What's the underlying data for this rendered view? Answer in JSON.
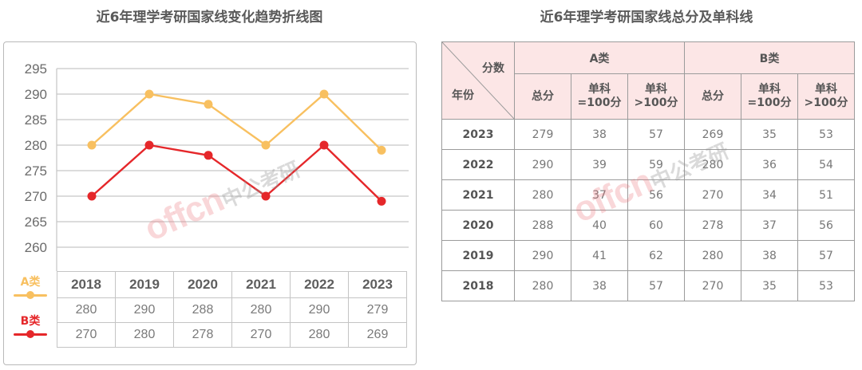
{
  "left": {
    "title": "近6年理学考研国家线变化趋势折线图",
    "y_ticks": [
      "295",
      "290",
      "285",
      "280",
      "275",
      "270",
      "265",
      "260"
    ],
    "legend": [
      {
        "label": "A类",
        "color": "#f8c060"
      },
      {
        "label": "B类",
        "color": "#e5272a"
      }
    ],
    "table": {
      "years": [
        "2018",
        "2019",
        "2020",
        "2021",
        "2022",
        "2023"
      ],
      "a_values": [
        "280",
        "290",
        "288",
        "280",
        "290",
        "279"
      ],
      "b_values": [
        "270",
        "280",
        "278",
        "270",
        "280",
        "269"
      ]
    },
    "watermark": {
      "en": "offcn",
      "cn": "中公考研"
    }
  },
  "right": {
    "title": "近6年理学考研国家线总分及单科线",
    "corner_top": "分数",
    "corner_bottom": "年份",
    "group_a": "A类",
    "group_b": "B类",
    "sub_headers": [
      {
        "l1": "总分",
        "l2": ""
      },
      {
        "l1": "单科",
        "l2": "=100分"
      },
      {
        "l1": "单科",
        "l2": ">100分"
      },
      {
        "l1": "总分",
        "l2": ""
      },
      {
        "l1": "单科",
        "l2": "=100分"
      },
      {
        "l1": "单科",
        "l2": ">100分"
      }
    ],
    "rows": [
      {
        "year": "2023",
        "cells": [
          "279",
          "38",
          "57",
          "269",
          "35",
          "53"
        ]
      },
      {
        "year": "2022",
        "cells": [
          "290",
          "39",
          "59",
          "280",
          "36",
          "54"
        ]
      },
      {
        "year": "2021",
        "cells": [
          "280",
          "37",
          "56",
          "270",
          "34",
          "51"
        ]
      },
      {
        "year": "2020",
        "cells": [
          "288",
          "40",
          "60",
          "278",
          "37",
          "56"
        ]
      },
      {
        "year": "2019",
        "cells": [
          "290",
          "41",
          "62",
          "280",
          "38",
          "57"
        ]
      },
      {
        "year": "2018",
        "cells": [
          "280",
          "38",
          "57",
          "270",
          "35",
          "53"
        ]
      }
    ],
    "header_bg": "#fce6e6",
    "watermark": {
      "en": "offcn",
      "cn": "中公考研"
    }
  },
  "chart_data": [
    {
      "type": "line",
      "title": "近6年理学考研国家线变化趋势折线图",
      "x": [
        "2018",
        "2019",
        "2020",
        "2021",
        "2022",
        "2023"
      ],
      "series": [
        {
          "name": "A类",
          "color": "#f8c060",
          "values": [
            280,
            290,
            288,
            280,
            290,
            279
          ]
        },
        {
          "name": "B类",
          "color": "#e5272a",
          "values": [
            270,
            280,
            278,
            270,
            280,
            269
          ]
        }
      ],
      "xlabel": "",
      "ylabel": "",
      "ylim": [
        255,
        295
      ],
      "y_ticks": [
        260,
        265,
        270,
        275,
        280,
        285,
        290,
        295
      ],
      "grid": true,
      "legend_position": "left, beside data table"
    },
    {
      "type": "table",
      "title": "近6年理学考研国家线总分及单科线",
      "columns": [
        "年份",
        "A类 总分",
        "A类 单科=100分",
        "A类 单科>100分",
        "B类 总分",
        "B类 单科=100分",
        "B类 单科>100分"
      ],
      "rows": [
        [
          "2023",
          279,
          38,
          57,
          269,
          35,
          53
        ],
        [
          "2022",
          290,
          39,
          59,
          280,
          36,
          54
        ],
        [
          "2021",
          280,
          37,
          56,
          270,
          34,
          51
        ],
        [
          "2020",
          288,
          40,
          60,
          278,
          37,
          56
        ],
        [
          "2019",
          290,
          41,
          62,
          280,
          38,
          57
        ],
        [
          "2018",
          280,
          38,
          57,
          270,
          35,
          53
        ]
      ]
    }
  ]
}
